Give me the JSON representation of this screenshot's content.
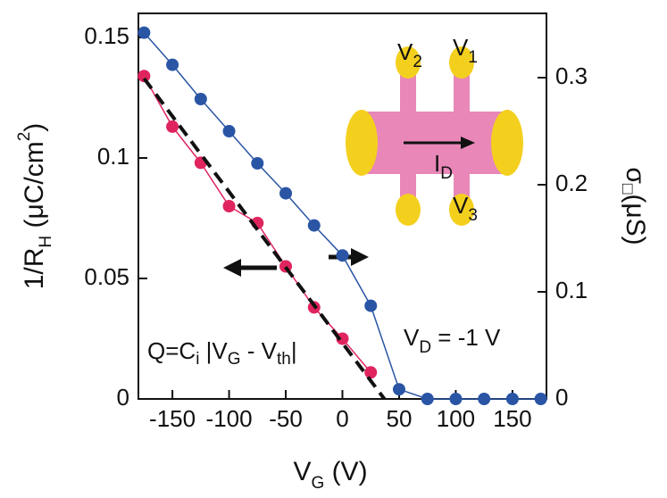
{
  "chart_data": {
    "type": "scatter",
    "x_label": [
      "V",
      "G",
      " (V)"
    ],
    "y_label": [
      "1/R",
      "H",
      " (μC/cm",
      "2",
      ")"
    ],
    "y2_label": [
      "σ",
      "□",
      "(μS)"
    ],
    "annotations": {
      "formula": [
        "Q=C",
        "i",
        " |V",
        "G",
        " - V",
        "th",
        "|"
      ],
      "drain": [
        "V",
        "D",
        " = -1 V"
      ],
      "inset": {
        "v2": [
          "V",
          "2"
        ],
        "v1": [
          "V",
          "1"
        ],
        "v3": [
          "V",
          "3"
        ],
        "id": [
          "I",
          "D"
        ]
      }
    },
    "xlim": [
      -180,
      180
    ],
    "xticks": [
      -150,
      -100,
      -50,
      0,
      50,
      100,
      150
    ],
    "ylim": [
      0,
      0.16
    ],
    "yticks": [
      0,
      0.05,
      0.1,
      0.15
    ],
    "y2lim": [
      0,
      0.36
    ],
    "y2ticks": [
      0,
      0.1,
      0.2,
      0.3
    ],
    "series": [
      {
        "color": "#e0245e",
        "axis": "y",
        "x": [
          -175,
          -150,
          -125,
          -100,
          -75,
          -50,
          -25,
          0,
          25
        ],
        "values": [
          0.134,
          0.113,
          0.098,
          0.08,
          0.073,
          0.055,
          0.038,
          0.025,
          0.011
        ]
      },
      {
        "color": "#2a55a5",
        "axis": "y2",
        "x": [
          -175,
          -150,
          -125,
          -100,
          -75,
          -50,
          -25,
          0,
          25,
          50,
          75,
          100,
          125,
          150,
          175
        ],
        "values": [
          0.342,
          0.312,
          0.28,
          0.25,
          0.22,
          0.192,
          0.162,
          0.134,
          0.087,
          0.009,
          0,
          0,
          0,
          0,
          0
        ]
      }
    ],
    "reference_line": {
      "x": [
        -175,
        37
      ],
      "values": [
        0.133,
        0
      ],
      "color": "#111"
    }
  }
}
